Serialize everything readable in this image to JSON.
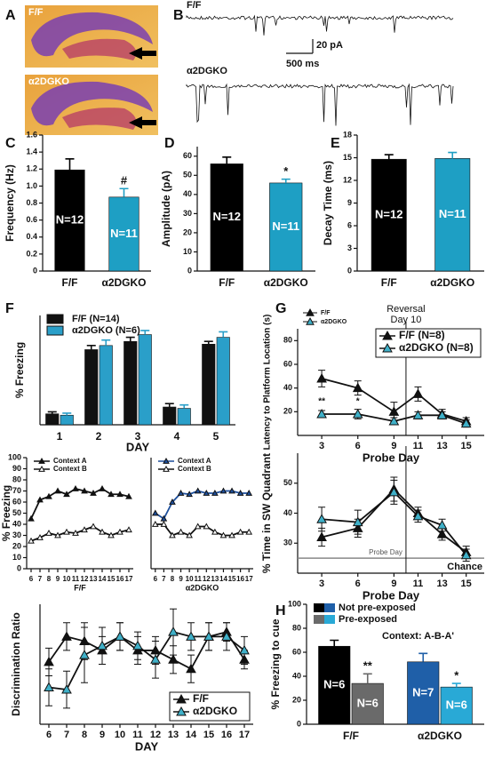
{
  "panel_labels": [
    "A",
    "B",
    "C",
    "D",
    "E",
    "F",
    "G",
    "H"
  ],
  "panel_a": {
    "labels": [
      "F/F",
      "α2DGKO"
    ]
  },
  "panel_b": {
    "labels": [
      "F/F",
      "α2DGKO"
    ],
    "scale_y": "20 pA",
    "scale_x": "500 ms"
  },
  "chart_data": [
    {
      "type": "bar",
      "ylabel": "Frequency (Hz)",
      "categories": [
        "F/F",
        "α2DGKO"
      ],
      "values": [
        1.19,
        0.87
      ],
      "errors": [
        0.13,
        0.1
      ],
      "colors": [
        "#000000",
        "#1e9fc4"
      ],
      "bar_texts": [
        "N=12",
        "N=11"
      ],
      "significance": [
        null,
        "#"
      ],
      "ylim": [
        0,
        1.6
      ],
      "yticks": [
        0,
        0.2,
        0.4,
        0.6,
        0.8,
        {
          "value": 1,
          "label": "1.0"
        },
        1.2,
        1.4,
        1.6
      ]
    },
    {
      "type": "bar",
      "ylabel": "Amplitude (pA)",
      "categories": [
        "F/F",
        "α2DGKO"
      ],
      "values": [
        56,
        46
      ],
      "errors": [
        3.5,
        2
      ],
      "colors": [
        "#000000",
        "#1e9fc4"
      ],
      "bar_texts": [
        "N=12",
        "N=11"
      ],
      "significance": [
        null,
        "*"
      ],
      "ylim": [
        0,
        65
      ],
      "yticks": [
        0,
        10,
        20,
        30,
        40,
        50,
        60
      ]
    },
    {
      "type": "bar",
      "ylabel": "Decay Time (ms)",
      "categories": [
        "F/F",
        "α2DGKO"
      ],
      "values": [
        14.8,
        14.9
      ],
      "errors": [
        0.6,
        0.8
      ],
      "colors": [
        "#000000",
        "#1e9fc4"
      ],
      "bar_texts": [
        "N=12",
        "N=11"
      ],
      "significance": [
        null,
        null
      ],
      "ylim": [
        0,
        18
      ],
      "yticks": [
        0,
        3,
        6,
        9,
        12,
        15,
        18
      ]
    },
    {
      "type": "bar",
      "ylabel": "% Freezing",
      "xlabel": "DAY",
      "categories": [
        "1",
        "2",
        "3",
        "4",
        "5"
      ],
      "ylim": [
        0,
        80
      ],
      "legend": "top-left",
      "series": [
        {
          "name": "F/F (N=14)",
          "color": "#111111",
          "values": [
            8,
            55,
            61,
            13,
            59
          ],
          "errors": [
            1.5,
            3,
            3,
            2.5,
            2
          ]
        },
        {
          "name": "α2DGKO (N=6)",
          "color": "#2a9fc9",
          "values": [
            7,
            58,
            66,
            12,
            64
          ],
          "errors": [
            1.5,
            4,
            3,
            2.5,
            4
          ]
        }
      ]
    },
    {
      "type": "line",
      "ylabel": "% Freezing",
      "caption": "F/F",
      "x": [
        6,
        7,
        8,
        9,
        10,
        11,
        12,
        13,
        14,
        15,
        16,
        17
      ],
      "xlim": [
        5.5,
        17.5
      ],
      "xticks": [
        6,
        7,
        8,
        9,
        10,
        11,
        12,
        13,
        14,
        15,
        16,
        17
      ],
      "ylim": [
        0,
        100
      ],
      "yticks": [
        0,
        10,
        20,
        30,
        40,
        50,
        60,
        70,
        80,
        90,
        100
      ],
      "legend": "top-left",
      "series": [
        {
          "name": "Context A",
          "color": "#111111",
          "marker_fill": "#111111",
          "values": [
            45,
            62,
            65,
            70,
            67,
            72,
            70,
            68,
            72,
            67,
            67,
            65
          ]
        },
        {
          "name": "Context B",
          "color": "#111111",
          "marker_fill": "#ffffff",
          "values": [
            25,
            28,
            32,
            30,
            33,
            32,
            35,
            38,
            33,
            30,
            33,
            35
          ]
        }
      ]
    },
    {
      "type": "line",
      "caption": "α2DGKO",
      "x": [
        6,
        7,
        8,
        9,
        10,
        11,
        12,
        13,
        14,
        15,
        16,
        17
      ],
      "xlim": [
        5.5,
        17.5
      ],
      "xticks": [
        6,
        7,
        8,
        9,
        10,
        11,
        12,
        13,
        14,
        15,
        16,
        17
      ],
      "ylim": [
        0,
        100
      ],
      "legend": "top-left",
      "series": [
        {
          "name": "Context A",
          "color": "#1d4f9c",
          "marker_fill": "#1d4f9c",
          "values": [
            50,
            45,
            60,
            68,
            67,
            70,
            68,
            68,
            70,
            70,
            68,
            68
          ]
        },
        {
          "name": "Context B",
          "color": "#111111",
          "marker_fill": "#ffffff",
          "values": [
            40,
            40,
            30,
            33,
            30,
            38,
            38,
            33,
            30,
            30,
            33,
            33
          ]
        }
      ]
    },
    {
      "type": "line",
      "ylabel": "Discrimination Ratio",
      "xlabel": "DAY",
      "x": [
        6,
        7,
        8,
        9,
        10,
        11,
        12,
        13,
        14,
        15,
        16,
        17
      ],
      "xlim": [
        5.5,
        17.5
      ],
      "xticks": [
        6,
        7,
        8,
        9,
        10,
        11,
        12,
        13,
        14,
        15,
        16,
        17
      ],
      "ylim": [
        0.5,
        0.76
      ],
      "legend": "bottom-right",
      "series": [
        {
          "name": "F/F",
          "color": "#111111",
          "marker_fill": "#111111",
          "values": [
            0.635,
            0.69,
            0.68,
            0.66,
            0.69,
            0.66,
            0.66,
            0.64,
            0.62,
            0.69,
            0.7,
            0.64
          ],
          "errors": [
            0.03,
            0.03,
            0.04,
            0.03,
            0.03,
            0.03,
            0.03,
            0.03,
            0.03,
            0.03,
            0.02,
            0.02
          ]
        },
        {
          "name": "α2DGKO",
          "color": "#111111",
          "marker_fill": "#3fb0c8",
          "values": [
            0.58,
            0.575,
            0.65,
            0.67,
            0.69,
            0.67,
            0.64,
            0.7,
            0.69,
            0.69,
            0.69,
            0.66
          ],
          "errors": [
            0.04,
            0.04,
            0.06,
            0.04,
            0.03,
            0.03,
            0.04,
            0.05,
            0.03,
            0.03,
            0.03,
            0.03
          ]
        }
      ]
    },
    {
      "type": "line",
      "ylabel": "Latency to Platform Location (s)",
      "xlabel": "Probe Day",
      "x": [
        3,
        6,
        9,
        11,
        13,
        15
      ],
      "xlim": [
        1,
        16.5
      ],
      "xticks": [
        3,
        6,
        9,
        11,
        13,
        15
      ],
      "ylim": [
        0,
        90
      ],
      "yticks": [
        20,
        40,
        60,
        80
      ],
      "reference_x": 10,
      "annotation": [
        "Reversal",
        "Day 10"
      ],
      "legend": "top-right",
      "small_legend": [
        "F/F",
        "α2DGKO"
      ],
      "series": [
        {
          "name": "F/F (N=8)",
          "color": "#111111",
          "marker_fill": "#111111",
          "values": [
            48,
            40,
            20,
            35,
            18,
            12
          ],
          "errors": [
            7,
            6,
            8,
            6,
            4,
            3
          ]
        },
        {
          "name": "α2DGKO (N=8)",
          "color": "#111111",
          "marker_fill": "#3fb0c8",
          "values": [
            18,
            18,
            12,
            17,
            17,
            10
          ],
          "errors": [
            3,
            4,
            3,
            3,
            3,
            3
          ],
          "significance": [
            "**",
            "*",
            null,
            null,
            null,
            null
          ]
        }
      ]
    },
    {
      "type": "line",
      "ylabel": "% Time in SW Quadrant",
      "xlabel": "Probe Day",
      "x": [
        3,
        6,
        9,
        11,
        13,
        15
      ],
      "xlim": [
        1,
        16.5
      ],
      "xticks": [
        3,
        6,
        9,
        11,
        13,
        15
      ],
      "ylim": [
        20,
        60
      ],
      "yticks": [
        30,
        40,
        50
      ],
      "reference_x": 10,
      "chance_line": 25,
      "chance_label": "Chance",
      "note": "Probe Day",
      "series": [
        {
          "name": "F/F",
          "color": "#111111",
          "marker_fill": "#111111",
          "values": [
            32,
            35,
            48,
            40,
            33,
            27
          ],
          "errors": [
            3,
            3,
            4,
            2,
            2,
            2
          ]
        },
        {
          "name": "α2DGKO",
          "color": "#111111",
          "marker_fill": "#3fb0c8",
          "values": [
            38,
            37,
            47,
            39,
            36,
            26
          ],
          "errors": [
            4,
            4,
            4,
            2,
            2,
            2
          ]
        }
      ]
    },
    {
      "type": "bar",
      "ylabel": "% Freezing to cue",
      "categories": [
        "F/F",
        "α2DGKO"
      ],
      "ylim": [
        0,
        100
      ],
      "yticks": [
        0,
        20,
        40,
        60,
        80,
        100
      ],
      "legend": "top-left",
      "annotation": "Context: A-B-A'",
      "series": [
        {
          "name": "Not pre-exposed",
          "colors": [
            "#000000",
            "#1f5fa8"
          ],
          "values": [
            65,
            52
          ],
          "errors": [
            5,
            7
          ],
          "bar_texts": [
            "N=6",
            "N=7"
          ],
          "significance": [
            null,
            null
          ]
        },
        {
          "name": "Pre-exposed",
          "colors": [
            "#6a6a6a",
            "#29a9d6"
          ],
          "values": [
            34,
            31
          ],
          "errors": [
            8,
            3
          ],
          "bar_texts": [
            "N=6",
            "N=6"
          ],
          "significance": [
            "**",
            "*"
          ]
        }
      ]
    }
  ]
}
